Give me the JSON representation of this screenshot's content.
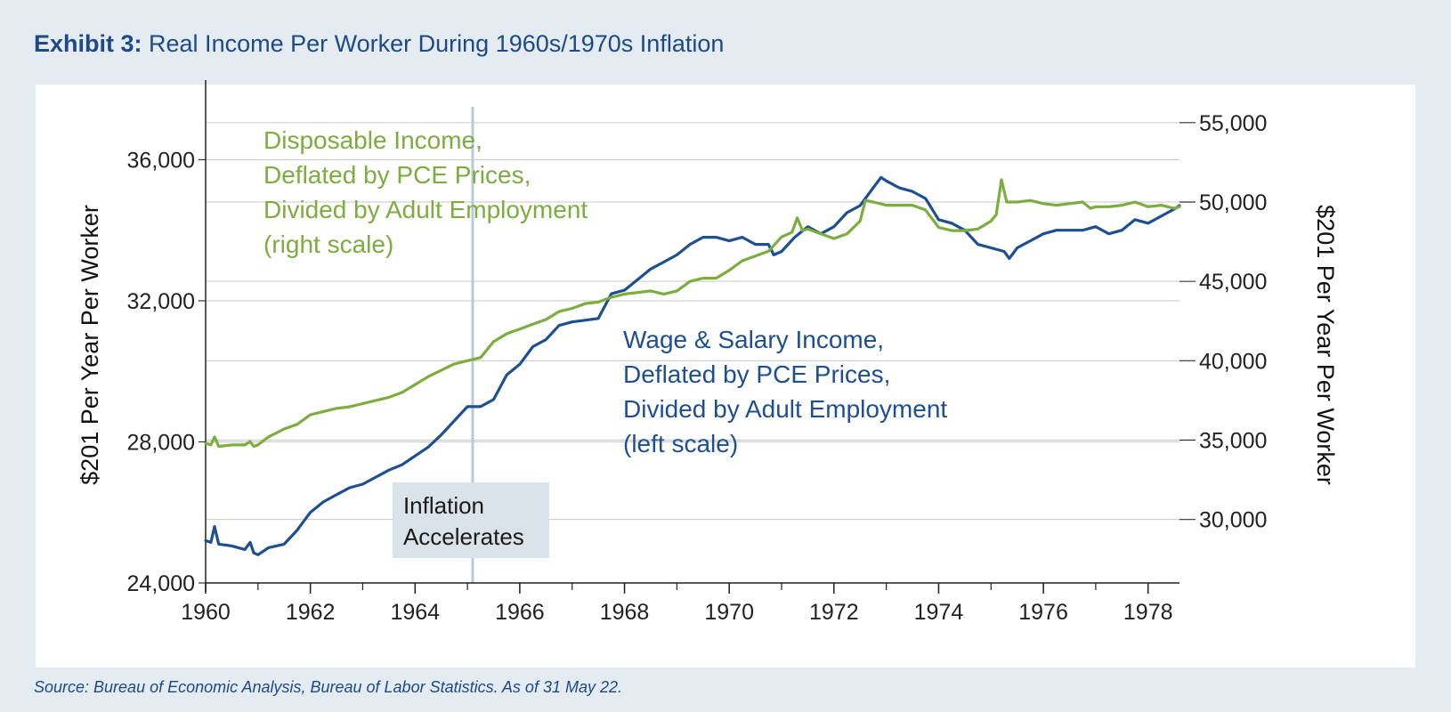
{
  "exhibit": {
    "label": "Exhibit 3:",
    "title": "Real Income Per Worker During 1960s/1970s Inflation",
    "source": "Source: Bureau of Economic Analysis, Bureau of Labor Statistics. As of 31 May 22."
  },
  "colors": {
    "background": "#e4ebf1",
    "panel": "#ffffff",
    "wage_series": "#1d4f91",
    "disposable_series": "#7cad3e",
    "title_text": "#1d4a86",
    "grid": "#c9c9c9",
    "event_line": "#b9c9da",
    "annotation_box": "#dbe3ea"
  },
  "chart_data": {
    "type": "line",
    "y_left": {
      "label": "$201 Per Year Per Worker",
      "range": [
        24000,
        37500
      ],
      "ticks": [
        24000,
        28000,
        32000,
        36000
      ],
      "tick_labels": [
        "24,000",
        "28,000",
        "32,000",
        "36,000"
      ]
    },
    "y_right": {
      "label": "$201 Per Year Per Worker",
      "range": [
        26000,
        56000
      ],
      "ticks": [
        30000,
        35000,
        40000,
        45000,
        50000,
        55000
      ],
      "tick_labels": [
        "30,000",
        "35,000",
        "40,000",
        "45,000",
        "50,000",
        "55,000"
      ]
    },
    "x_axis": {
      "range": [
        1960.0,
        1978.6
      ],
      "ticks": [
        1960,
        1962,
        1964,
        1966,
        1968,
        1970,
        1972,
        1974,
        1976,
        1978
      ],
      "tick_labels": [
        "1960",
        "1962",
        "1964",
        "1966",
        "1968",
        "1970",
        "1972",
        "1974",
        "1976",
        "1978"
      ]
    },
    "event_marker": {
      "x": 1965.1,
      "label_lines": [
        "Inflation",
        "Accelerates"
      ]
    },
    "grid": "horizontal",
    "series": [
      {
        "key": "wage",
        "axis": "left",
        "label_lines": [
          "Wage & Salary Income,",
          "Deflated by PCE Prices,",
          "Divided by Adult Employment",
          "(left scale)"
        ],
        "points": [
          [
            1960.0,
            25200
          ],
          [
            1960.1,
            25150
          ],
          [
            1960.17,
            25600
          ],
          [
            1960.25,
            25100
          ],
          [
            1960.5,
            25050
          ],
          [
            1960.75,
            24950
          ],
          [
            1960.85,
            25150
          ],
          [
            1960.92,
            24850
          ],
          [
            1961.0,
            24800
          ],
          [
            1961.2,
            25000
          ],
          [
            1961.5,
            25100
          ],
          [
            1961.75,
            25500
          ],
          [
            1962.0,
            26000
          ],
          [
            1962.25,
            26300
          ],
          [
            1962.5,
            26500
          ],
          [
            1962.75,
            26700
          ],
          [
            1963.0,
            26800
          ],
          [
            1963.25,
            27000
          ],
          [
            1963.5,
            27200
          ],
          [
            1963.75,
            27350
          ],
          [
            1964.0,
            27600
          ],
          [
            1964.25,
            27850
          ],
          [
            1964.5,
            28200
          ],
          [
            1964.75,
            28600
          ],
          [
            1965.0,
            29000
          ],
          [
            1965.25,
            29000
          ],
          [
            1965.5,
            29200
          ],
          [
            1965.75,
            29900
          ],
          [
            1966.0,
            30200
          ],
          [
            1966.25,
            30700
          ],
          [
            1966.5,
            30900
          ],
          [
            1966.75,
            31300
          ],
          [
            1967.0,
            31400
          ],
          [
            1967.25,
            31450
          ],
          [
            1967.5,
            31500
          ],
          [
            1967.75,
            32200
          ],
          [
            1968.0,
            32300
          ],
          [
            1968.25,
            32600
          ],
          [
            1968.5,
            32900
          ],
          [
            1968.75,
            33100
          ],
          [
            1969.0,
            33300
          ],
          [
            1969.25,
            33600
          ],
          [
            1969.5,
            33800
          ],
          [
            1969.75,
            33800
          ],
          [
            1970.0,
            33700
          ],
          [
            1970.25,
            33800
          ],
          [
            1970.5,
            33600
          ],
          [
            1970.75,
            33600
          ],
          [
            1970.85,
            33300
          ],
          [
            1971.0,
            33400
          ],
          [
            1971.25,
            33800
          ],
          [
            1971.5,
            34100
          ],
          [
            1971.75,
            33900
          ],
          [
            1972.0,
            34100
          ],
          [
            1972.25,
            34500
          ],
          [
            1972.5,
            34700
          ],
          [
            1972.75,
            35200
          ],
          [
            1972.9,
            35500
          ],
          [
            1973.0,
            35400
          ],
          [
            1973.25,
            35200
          ],
          [
            1973.5,
            35100
          ],
          [
            1973.75,
            34900
          ],
          [
            1974.0,
            34300
          ],
          [
            1974.25,
            34200
          ],
          [
            1974.5,
            34000
          ],
          [
            1974.75,
            33600
          ],
          [
            1975.0,
            33500
          ],
          [
            1975.25,
            33400
          ],
          [
            1975.35,
            33200
          ],
          [
            1975.5,
            33500
          ],
          [
            1975.75,
            33700
          ],
          [
            1976.0,
            33900
          ],
          [
            1976.25,
            34000
          ],
          [
            1976.5,
            34000
          ],
          [
            1976.75,
            34000
          ],
          [
            1977.0,
            34100
          ],
          [
            1977.25,
            33900
          ],
          [
            1977.5,
            34000
          ],
          [
            1977.75,
            34300
          ],
          [
            1978.0,
            34200
          ],
          [
            1978.25,
            34400
          ],
          [
            1978.5,
            34600
          ],
          [
            1978.6,
            34700
          ]
        ]
      },
      {
        "key": "disposable",
        "axis": "right",
        "label_lines": [
          "Disposable Income,",
          "Deflated by PCE Prices,",
          "Divided by Adult Employment",
          "(right scale)"
        ],
        "points": [
          [
            1960.0,
            34800
          ],
          [
            1960.1,
            34700
          ],
          [
            1960.17,
            35200
          ],
          [
            1960.25,
            34600
          ],
          [
            1960.5,
            34700
          ],
          [
            1960.75,
            34700
          ],
          [
            1960.85,
            34900
          ],
          [
            1960.92,
            34600
          ],
          [
            1961.0,
            34700
          ],
          [
            1961.2,
            35200
          ],
          [
            1961.5,
            35700
          ],
          [
            1961.75,
            36000
          ],
          [
            1962.0,
            36600
          ],
          [
            1962.25,
            36800
          ],
          [
            1962.5,
            37000
          ],
          [
            1962.75,
            37100
          ],
          [
            1963.0,
            37300
          ],
          [
            1963.25,
            37500
          ],
          [
            1963.5,
            37700
          ],
          [
            1963.75,
            38000
          ],
          [
            1964.0,
            38500
          ],
          [
            1964.25,
            39000
          ],
          [
            1964.5,
            39400
          ],
          [
            1964.75,
            39800
          ],
          [
            1965.0,
            40000
          ],
          [
            1965.25,
            40200
          ],
          [
            1965.5,
            41200
          ],
          [
            1965.75,
            41700
          ],
          [
            1966.0,
            42000
          ],
          [
            1966.25,
            42300
          ],
          [
            1966.5,
            42600
          ],
          [
            1966.75,
            43100
          ],
          [
            1967.0,
            43300
          ],
          [
            1967.25,
            43600
          ],
          [
            1967.5,
            43700
          ],
          [
            1967.75,
            44000
          ],
          [
            1968.0,
            44200
          ],
          [
            1968.25,
            44300
          ],
          [
            1968.5,
            44400
          ],
          [
            1968.75,
            44200
          ],
          [
            1969.0,
            44400
          ],
          [
            1969.25,
            45000
          ],
          [
            1969.5,
            45200
          ],
          [
            1969.75,
            45200
          ],
          [
            1970.0,
            45700
          ],
          [
            1970.25,
            46300
          ],
          [
            1970.5,
            46600
          ],
          [
            1970.75,
            46900
          ],
          [
            1971.0,
            47800
          ],
          [
            1971.2,
            48100
          ],
          [
            1971.3,
            49000
          ],
          [
            1971.4,
            48200
          ],
          [
            1971.5,
            48300
          ],
          [
            1971.75,
            48000
          ],
          [
            1972.0,
            47700
          ],
          [
            1972.25,
            48000
          ],
          [
            1972.5,
            48800
          ],
          [
            1972.6,
            50100
          ],
          [
            1972.75,
            50000
          ],
          [
            1973.0,
            49800
          ],
          [
            1973.25,
            49800
          ],
          [
            1973.5,
            49800
          ],
          [
            1973.75,
            49500
          ],
          [
            1974.0,
            48400
          ],
          [
            1974.25,
            48200
          ],
          [
            1974.5,
            48200
          ],
          [
            1974.75,
            48300
          ],
          [
            1975.0,
            48800
          ],
          [
            1975.1,
            49200
          ],
          [
            1975.2,
            51400
          ],
          [
            1975.3,
            50000
          ],
          [
            1975.5,
            50000
          ],
          [
            1975.75,
            50100
          ],
          [
            1976.0,
            49900
          ],
          [
            1976.25,
            49800
          ],
          [
            1976.5,
            49900
          ],
          [
            1976.75,
            50000
          ],
          [
            1976.9,
            49600
          ],
          [
            1977.0,
            49700
          ],
          [
            1977.25,
            49700
          ],
          [
            1977.5,
            49800
          ],
          [
            1977.75,
            50000
          ],
          [
            1978.0,
            49700
          ],
          [
            1978.25,
            49800
          ],
          [
            1978.5,
            49600
          ],
          [
            1978.6,
            49700
          ]
        ]
      }
    ]
  }
}
